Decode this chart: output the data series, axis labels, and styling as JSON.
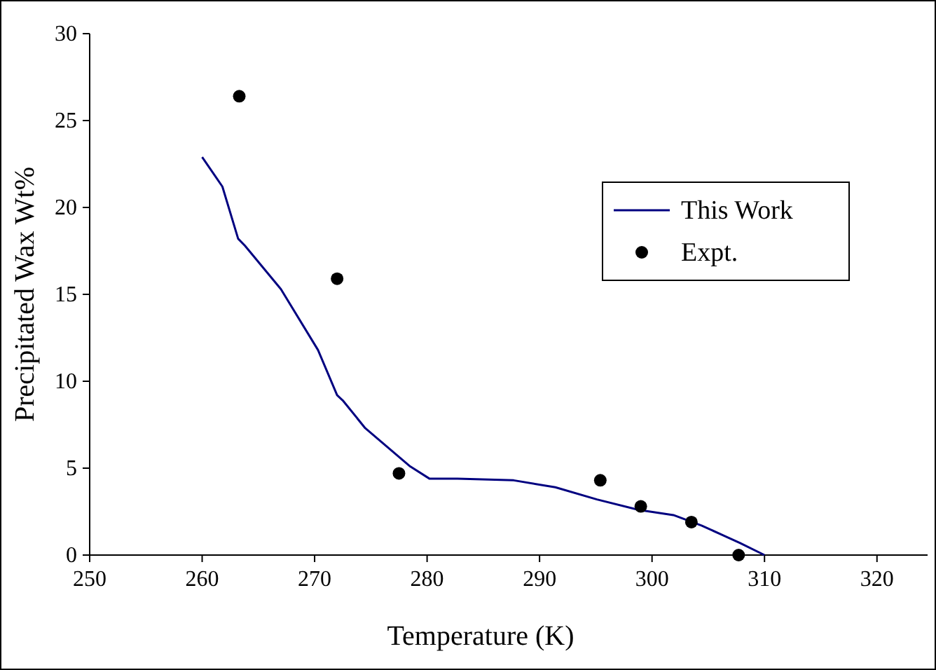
{
  "chart_data": {
    "type": "line",
    "xlabel": "Temperature (K)",
    "ylabel": "Precipitated Wax Wt%",
    "xlim": [
      250,
      324.5
    ],
    "xticks": [
      250,
      260,
      270,
      280,
      290,
      300,
      310,
      320
    ],
    "ylim": [
      0,
      30
    ],
    "yticks": [
      0,
      5,
      10,
      15,
      20,
      25,
      30
    ],
    "grid": false,
    "legend": "right",
    "series": [
      {
        "name": "This Work",
        "color": "#000080",
        "marker": "none",
        "line_style": "solid",
        "x": [
          260,
          261.8,
          263.2,
          263.8,
          267,
          270.3,
          272,
          272.5,
          274.5,
          278.5,
          280.2,
          282.7,
          287.7,
          291.4,
          295.1,
          298.8,
          301.9,
          304.4,
          307.8,
          310
        ],
        "values": [
          22.9,
          21.2,
          18.2,
          17.8,
          15.3,
          11.8,
          9.2,
          8.9,
          7.3,
          5.1,
          4.4,
          4.4,
          4.3,
          3.9,
          3.2,
          2.6,
          2.3,
          1.7,
          0.7,
          0
        ]
      },
      {
        "name": "Expt.",
        "type": "scatter",
        "color": "#000000",
        "marker": "circle",
        "x": [
          263.3,
          272,
          277.5,
          295.4,
          299,
          303.5,
          307.7
        ],
        "values": [
          26.4,
          15.9,
          4.7,
          4.3,
          2.8,
          1.9,
          0
        ]
      }
    ]
  }
}
